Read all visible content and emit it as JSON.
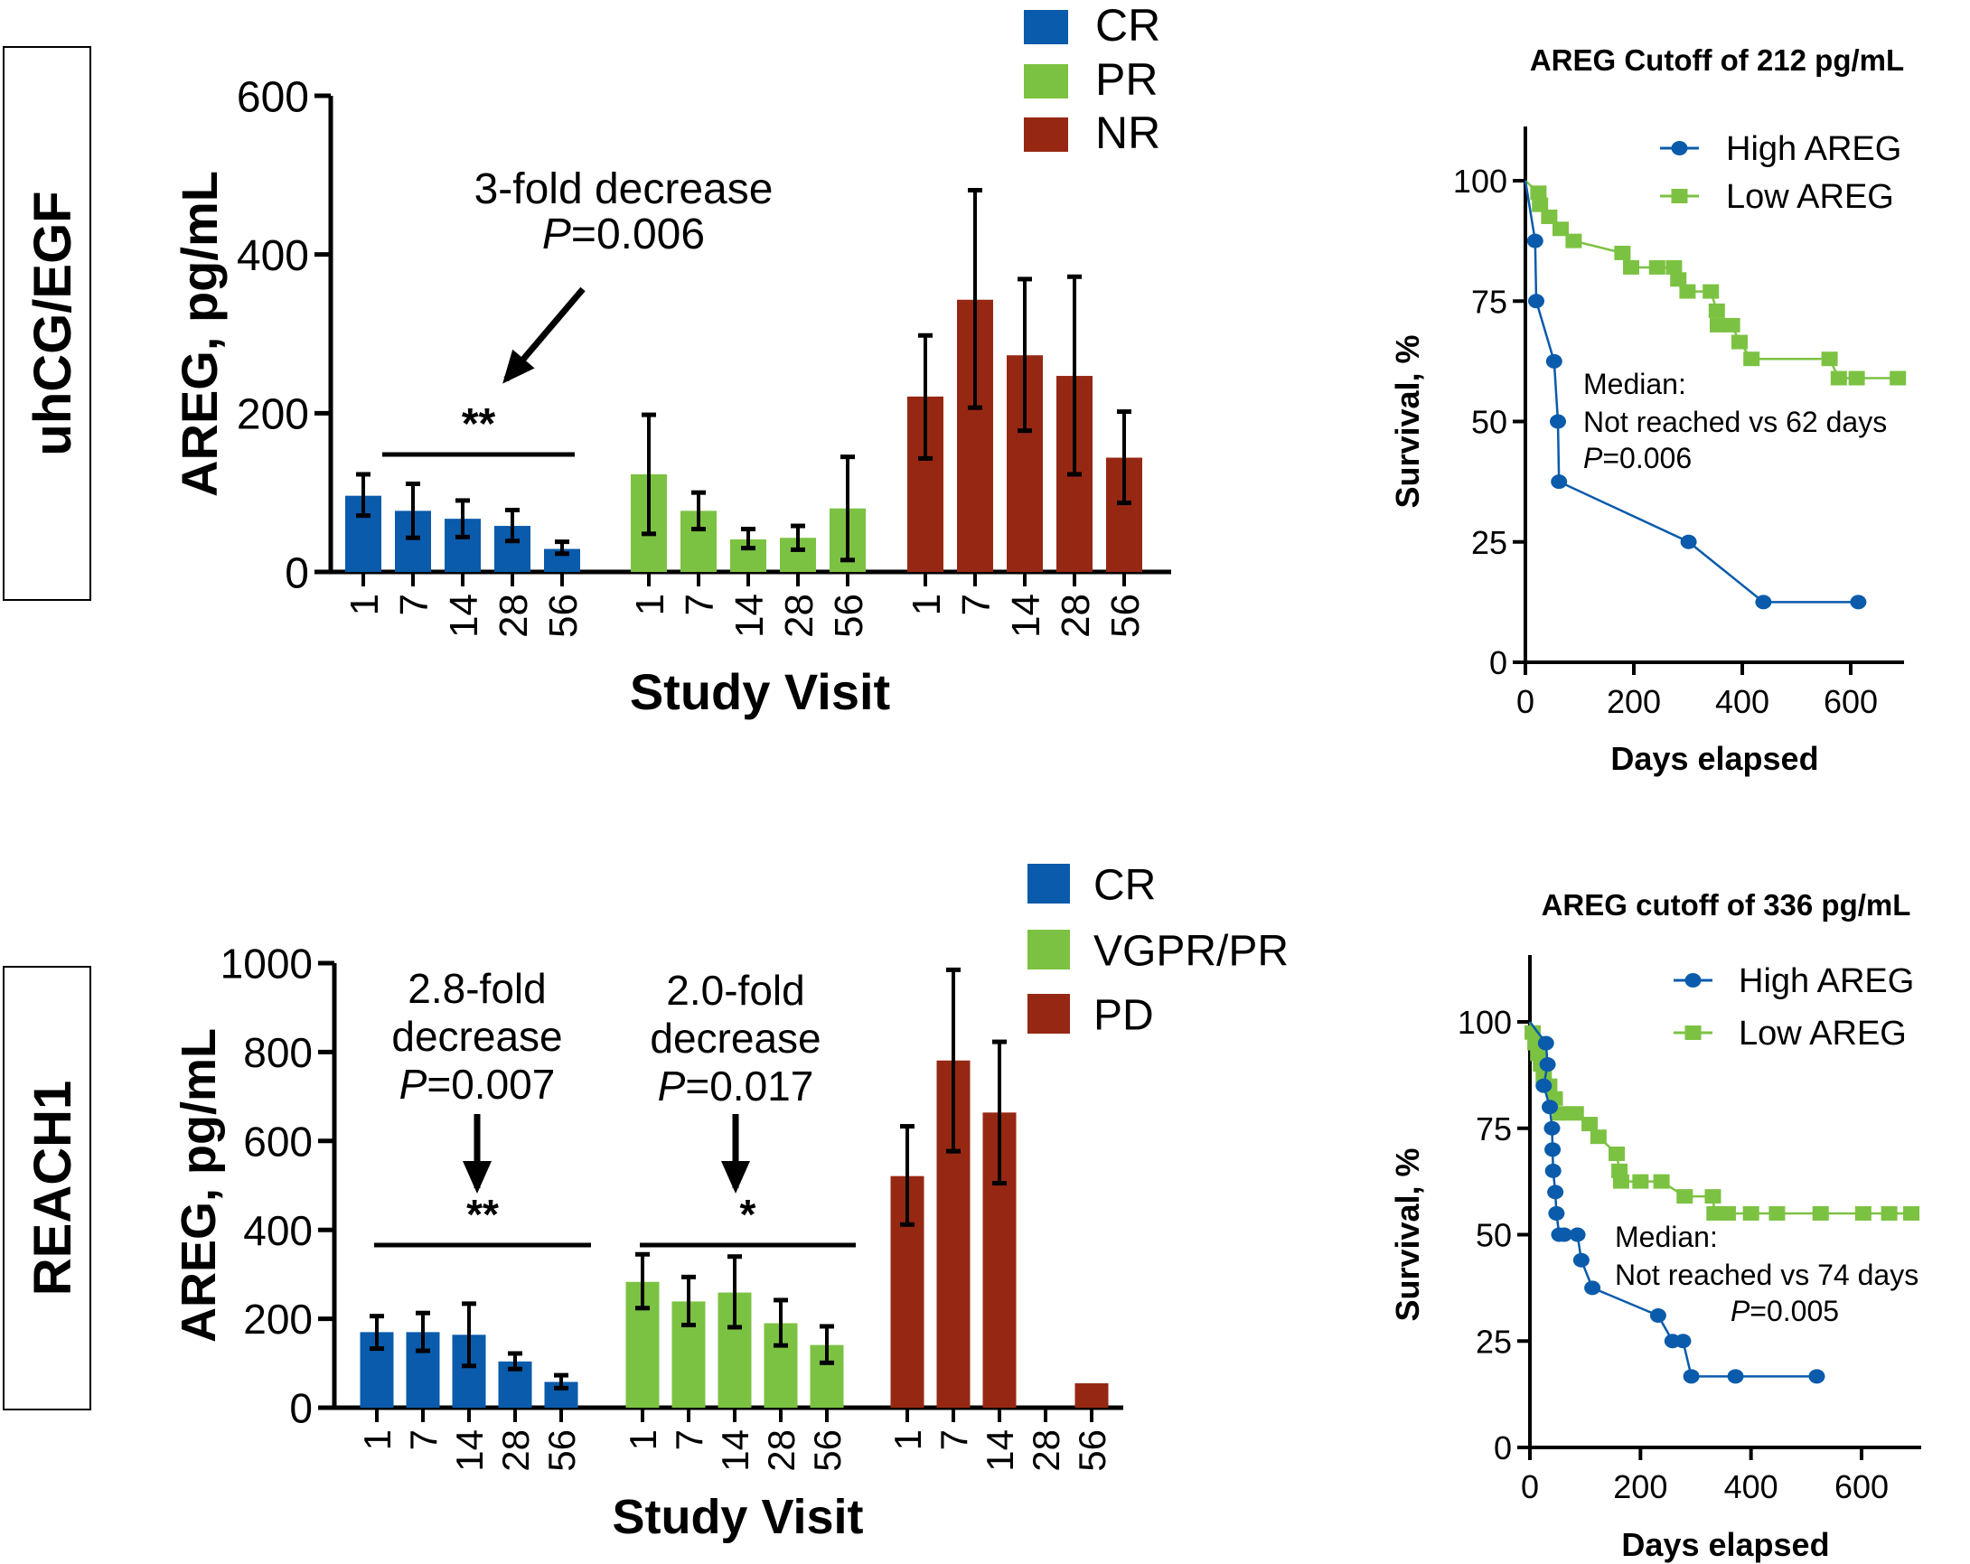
{
  "figure": {
    "panels": [
      "uhCG/EGF",
      "REACH1"
    ]
  },
  "colors": {
    "cr": "#0a5bab",
    "pr": "#7cc242",
    "nr": "#962813",
    "high_areg": "#0a5bab",
    "low_areg": "#7cc242",
    "axis": "#000000"
  },
  "chart_data": [
    {
      "id": "uhcg-bar",
      "type": "bar",
      "panel_label": "uhCG/EGF",
      "title": "",
      "xlabel": "Study Visit",
      "ylabel": "AREG, pg/mL",
      "ylim": [
        0,
        600
      ],
      "yticks": [
        0,
        200,
        400,
        600
      ],
      "categories": [
        "1",
        "7",
        "14",
        "28",
        "56"
      ],
      "legend": {
        "placement": "top-right",
        "entries": [
          "CR",
          "PR",
          "NR"
        ]
      },
      "series": [
        {
          "name": "CR",
          "color_key": "cr",
          "values": [
            96,
            77,
            67,
            58,
            29
          ],
          "err_high": [
            123,
            111,
            90,
            78,
            38
          ],
          "err_low": [
            71,
            43,
            44,
            39,
            23
          ]
        },
        {
          "name": "PR",
          "color_key": "pr",
          "values": [
            123,
            77,
            41,
            43,
            80
          ],
          "err_high": [
            198,
            100,
            54,
            58,
            145
          ],
          "err_low": [
            48,
            54,
            30,
            28,
            15
          ]
        },
        {
          "name": "NR",
          "color_key": "nr",
          "values": [
            221,
            343,
            273,
            247,
            144
          ],
          "err_high": [
            298,
            481,
            369,
            372,
            202
          ],
          "err_low": [
            143,
            207,
            178,
            123,
            87
          ]
        }
      ],
      "annotations": [
        {
          "text_lines": [
            "3-fold decrease",
            "P=0.006"
          ],
          "italic_prefix": "P",
          "significance": "**",
          "bracket_series": "CR"
        }
      ]
    },
    {
      "id": "uhcg-km",
      "type": "line",
      "title": "AREG Cutoff of 212 pg/mL",
      "xlabel": "Days elapsed",
      "ylabel": "Survival,  %",
      "xlim": [
        0,
        700
      ],
      "ylim": [
        0,
        110
      ],
      "xticks": [
        0,
        200,
        400,
        600
      ],
      "yticks": [
        0,
        25,
        50,
        75,
        100
      ],
      "legend": {
        "placement": "top-right",
        "entries": [
          "High AREG",
          "Low AREG"
        ]
      },
      "series": [
        {
          "name": "High AREG",
          "marker": "circle",
          "color_key": "high_areg",
          "x": [
            0,
            18,
            20,
            53,
            60,
            62,
            301,
            439,
            614
          ],
          "y": [
            100,
            87.5,
            75,
            62.5,
            50,
            37.5,
            25,
            12.5,
            12.5
          ]
        },
        {
          "name": "Low AREG",
          "marker": "square",
          "color_key": "low_areg",
          "x": [
            0,
            24,
            27,
            44,
            65,
            89,
            179,
            195,
            243,
            274,
            282,
            299,
            342,
            353,
            355,
            381,
            395,
            417,
            561,
            578,
            611,
            687
          ],
          "y": [
            100,
            97.5,
            95,
            92.5,
            90,
            87.5,
            85,
            82,
            82,
            82,
            79.5,
            77,
            77,
            73,
            70,
            70,
            66.5,
            63,
            63,
            59,
            59,
            59
          ]
        }
      ],
      "annotation": {
        "lines": [
          "Median:",
          "Not reached vs 62 days",
          "P=0.006"
        ]
      }
    },
    {
      "id": "reach1-bar",
      "type": "bar",
      "panel_label": "REACH1",
      "title": "",
      "xlabel": "Study Visit",
      "ylabel": "AREG, pg/mL",
      "ylim": [
        0,
        1000
      ],
      "yticks": [
        0,
        200,
        400,
        600,
        800,
        1000
      ],
      "categories": [
        "1",
        "7",
        "14",
        "28",
        "56"
      ],
      "legend": {
        "placement": "top-right",
        "entries": [
          "CR",
          "VGPR/PR",
          "PD"
        ]
      },
      "series": [
        {
          "name": "CR",
          "color_key": "cr",
          "values": [
            170,
            170,
            164,
            104,
            58
          ],
          "err_high": [
            206,
            213,
            234,
            122,
            73
          ],
          "err_low": [
            133,
            128,
            94,
            87,
            44
          ]
        },
        {
          "name": "VGPR/PR",
          "color_key": "pr",
          "values": [
            283,
            239,
            259,
            190,
            141
          ],
          "err_high": [
            345,
            294,
            340,
            242,
            183
          ],
          "err_low": [
            224,
            186,
            181,
            140,
            101
          ]
        },
        {
          "name": "PD",
          "color_key": "nr",
          "values": [
            521,
            781,
            664,
            null,
            55
          ],
          "err_high": [
            633,
            985,
            823,
            null,
            null
          ],
          "err_low": [
            412,
            577,
            505,
            null,
            null
          ]
        }
      ],
      "annotations": [
        {
          "text_lines": [
            "2.8-fold",
            "decrease",
            "P=0.007"
          ],
          "significance": "**",
          "bracket_series": "CR"
        },
        {
          "text_lines": [
            "2.0-fold",
            "decrease",
            "P=0.017"
          ],
          "significance": "*",
          "bracket_series": "VGPR/PR"
        }
      ]
    },
    {
      "id": "reach1-km",
      "type": "line",
      "title": "AREG cutoff of 336 pg/mL",
      "xlabel": "Days elapsed",
      "ylabel": "Survival,  %",
      "xlim": [
        0,
        700
      ],
      "ylim": [
        0,
        110
      ],
      "xticks": [
        0,
        200,
        400,
        600
      ],
      "yticks": [
        0,
        25,
        50,
        75,
        100
      ],
      "legend": {
        "placement": "top-right",
        "entries": [
          "High AREG",
          "Low AREG"
        ]
      },
      "series": [
        {
          "name": "High AREG",
          "marker": "circle",
          "color_key": "high_areg",
          "x": [
            0,
            29,
            32,
            25,
            36,
            40,
            41,
            42,
            46,
            48,
            53,
            62,
            86,
            93,
            113,
            232,
            258,
            277,
            292,
            372,
            519
          ],
          "y": [
            100,
            95,
            90,
            85,
            80,
            75,
            70,
            65,
            60,
            55,
            50,
            50,
            50,
            44,
            37.5,
            31,
            25,
            25,
            16.7,
            16.7,
            16.7
          ]
        },
        {
          "name": "Low AREG",
          "marker": "square",
          "color_key": "low_areg",
          "x": [
            0,
            5,
            10,
            15,
            20,
            25,
            35,
            45,
            55,
            83,
            108,
            124,
            157,
            162,
            165,
            200,
            238,
            280,
            331,
            334,
            358,
            400,
            447,
            526,
            603,
            650,
            690
          ],
          "y": [
            100,
            97.5,
            95,
            92.5,
            90,
            87,
            85,
            82,
            78.5,
            78.5,
            76,
            73,
            69,
            65,
            62.5,
            62.5,
            62.5,
            59,
            59,
            55,
            55,
            55,
            55,
            55,
            55,
            55,
            55
          ]
        }
      ],
      "annotation": {
        "lines": [
          "Median:",
          "Not reached vs 74 days",
          "P=0.005"
        ]
      }
    }
  ]
}
